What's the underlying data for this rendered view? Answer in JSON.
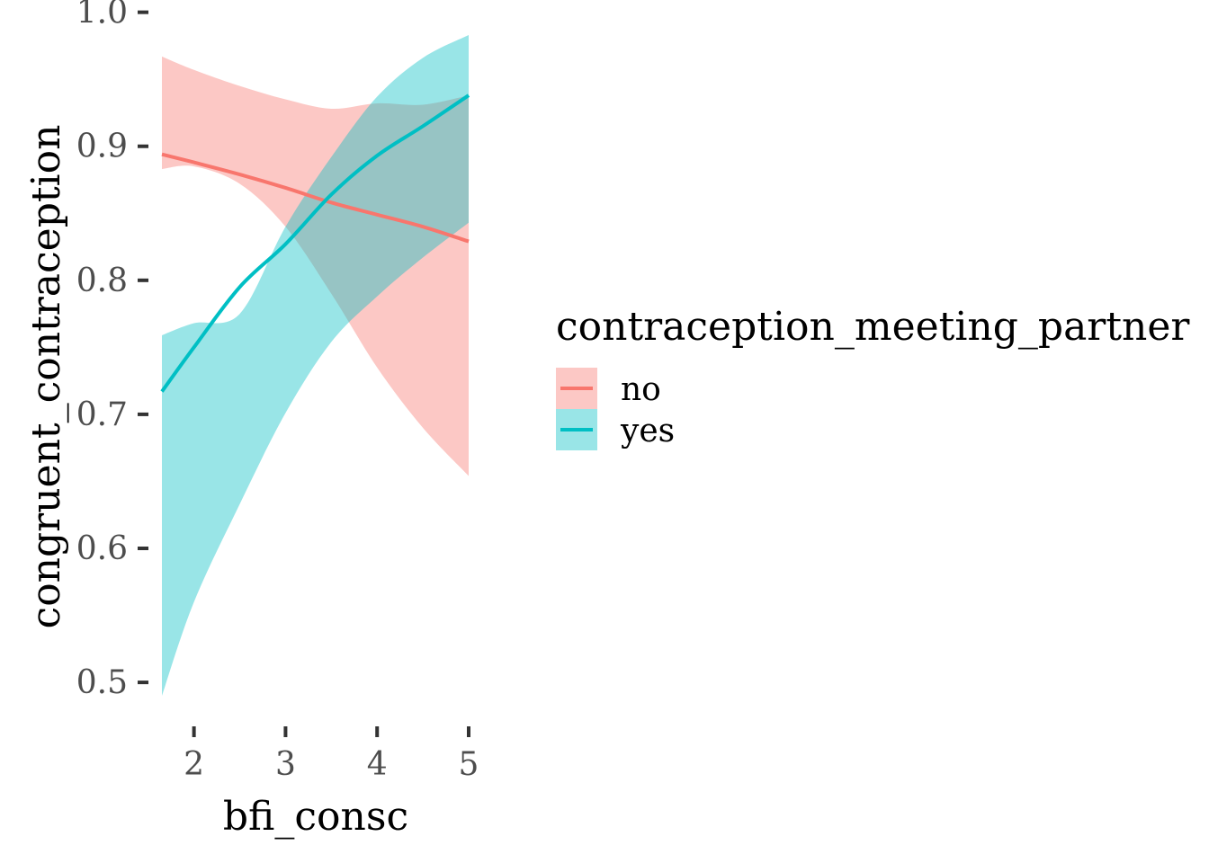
{
  "chart_data": {
    "type": "line",
    "xlabel": "bfi_consc",
    "ylabel": "congruent_contraception",
    "xlim": [
      1.65,
      5.0
    ],
    "ylim": [
      0.49,
      0.985
    ],
    "x_ticks": [
      2,
      3,
      4,
      5
    ],
    "x_tick_labels": [
      "2",
      "3",
      "4",
      "5"
    ],
    "y_ticks": [
      0.5,
      0.6,
      0.7,
      0.8,
      0.9,
      1.0
    ],
    "y_tick_labels": [
      "0.5",
      "0.6",
      "0.7",
      "0.8",
      "0.9",
      "1.0"
    ],
    "grid": false,
    "legend": {
      "title": "contraception_meeting_partner",
      "position": "right",
      "entries": [
        "no",
        "yes"
      ]
    },
    "series": [
      {
        "name": "no",
        "color": "#F8766D",
        "ribbon_color": "#F8766D",
        "x": [
          1.65,
          2.0,
          2.5,
          3.0,
          3.5,
          4.0,
          4.5,
          5.0
        ],
        "y": [
          0.894,
          0.888,
          0.879,
          0.869,
          0.858,
          0.849,
          0.84,
          0.829
        ],
        "lower": [
          0.883,
          0.885,
          0.872,
          0.84,
          0.79,
          0.735,
          0.69,
          0.654
        ],
        "upper": [
          0.967,
          0.957,
          0.945,
          0.935,
          0.928,
          0.932,
          0.931,
          0.938
        ]
      },
      {
        "name": "yes",
        "color": "#00BFC4",
        "ribbon_color": "#00BFC4",
        "x": [
          1.65,
          2.0,
          2.5,
          3.0,
          3.5,
          4.0,
          4.5,
          5.0
        ],
        "y": [
          0.717,
          0.75,
          0.795,
          0.827,
          0.864,
          0.893,
          0.915,
          0.938
        ],
        "lower": [
          0.49,
          0.56,
          0.633,
          0.701,
          0.754,
          0.788,
          0.817,
          0.843
        ],
        "upper": [
          0.759,
          0.768,
          0.775,
          0.84,
          0.892,
          0.937,
          0.966,
          0.983
        ]
      }
    ]
  }
}
